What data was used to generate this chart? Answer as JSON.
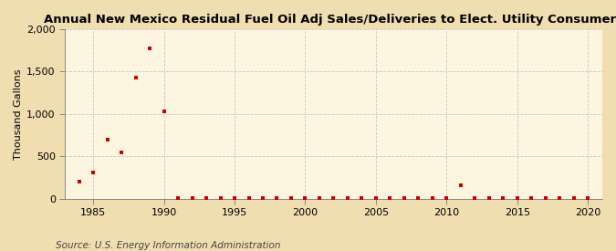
{
  "title": "Annual New Mexico Residual Fuel Oil Adj Sales/Deliveries to Elect. Utility Consumers",
  "ylabel": "Thousand Gallons",
  "source": "Source: U.S. Energy Information Administration",
  "fig_background_color": "#f0ddb0",
  "plot_background_color": "#fdf5e0",
  "marker_color": "#cc0000",
  "marker": "s",
  "marker_size": 3.5,
  "xlim": [
    1983,
    2021
  ],
  "ylim": [
    0,
    2000
  ],
  "yticks": [
    0,
    500,
    1000,
    1500,
    2000
  ],
  "xticks": [
    1985,
    1990,
    1995,
    2000,
    2005,
    2010,
    2015,
    2020
  ],
  "years": [
    1984,
    1985,
    1986,
    1987,
    1988,
    1989,
    1990,
    1991,
    1992,
    1993,
    1994,
    1995,
    1996,
    1997,
    1998,
    1999,
    2000,
    2001,
    2002,
    2003,
    2004,
    2005,
    2006,
    2007,
    2008,
    2009,
    2010,
    2011,
    2012,
    2013,
    2014,
    2015,
    2016,
    2017,
    2018,
    2019,
    2020
  ],
  "values": [
    200,
    310,
    700,
    545,
    1430,
    1775,
    1030,
    3,
    3,
    3,
    3,
    3,
    3,
    3,
    3,
    3,
    3,
    3,
    3,
    3,
    3,
    3,
    3,
    3,
    3,
    3,
    3,
    155,
    3,
    3,
    3,
    3,
    3,
    3,
    3,
    3,
    3
  ],
  "title_fontsize": 9.5,
  "ylabel_fontsize": 8,
  "tick_labelsize": 8,
  "source_fontsize": 7.5
}
